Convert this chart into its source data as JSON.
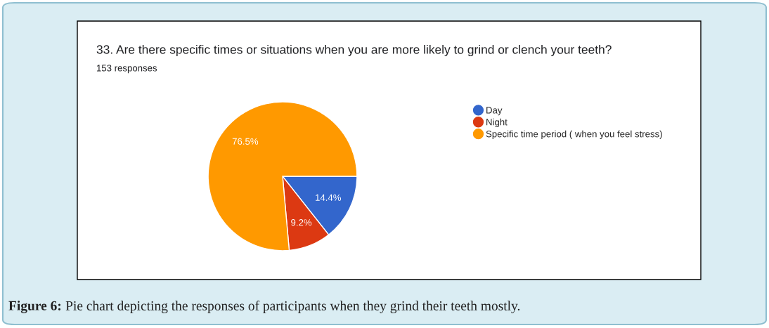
{
  "chart_data": {
    "type": "pie",
    "title": "33. Are there specific times or situations when you are more likely to grind or clench your teeth?",
    "subtitle": "153 responses",
    "categories": [
      "Day",
      "Night",
      "Specific time period ( when you feel stress)"
    ],
    "values": [
      14.4,
      9.2,
      76.5
    ],
    "colors": [
      "#3366cc",
      "#dc3912",
      "#ff9900"
    ],
    "value_labels": [
      "14.4%",
      "9.2%",
      "76.5%"
    ],
    "legend": "right",
    "annotations": [
      "Figure 6:",
      "Pie chart depicting the responses of participants when they grind their teeth mostly."
    ]
  }
}
